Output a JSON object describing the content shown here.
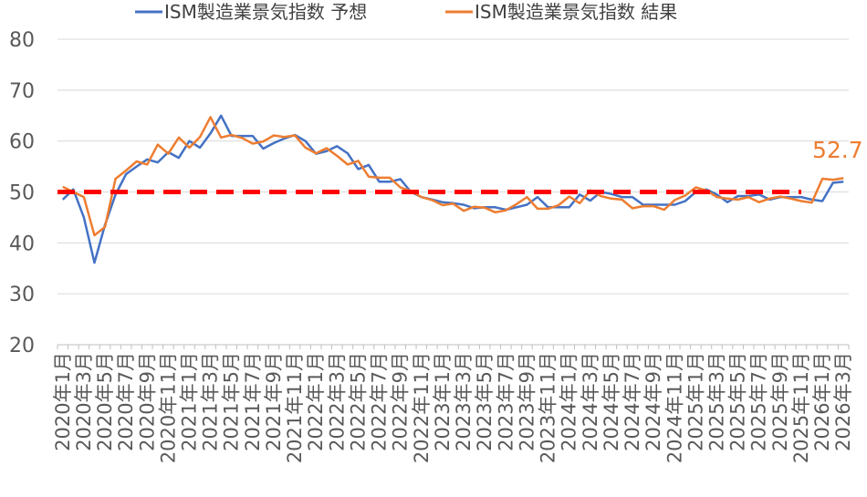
{
  "chart_data": {
    "type": "line",
    "title": "",
    "xlabel": "",
    "ylabel": "",
    "ylim": [
      20,
      80
    ],
    "yticks": [
      "20",
      "30",
      "40",
      "50",
      "60",
      "70",
      "80"
    ],
    "grid": true,
    "legend_position": "top",
    "categories": [
      "2020年1月",
      "2020年2月",
      "2020年3月",
      "2020年4月",
      "2020年5月",
      "2020年6月",
      "2020年7月",
      "2020年8月",
      "2020年9月",
      "2020年10月",
      "2020年11月",
      "2020年12月",
      "2021年1月",
      "2021年2月",
      "2021年3月",
      "2021年4月",
      "2021年5月",
      "2021年6月",
      "2021年7月",
      "2021年8月",
      "2021年9月",
      "2021年10月",
      "2021年11月",
      "2021年12月",
      "2022年1月",
      "2022年2月",
      "2022年3月",
      "2022年4月",
      "2022年5月",
      "2022年6月",
      "2022年7月",
      "2022年8月",
      "2022年9月",
      "2022年10月",
      "2022年11月",
      "2022年12月",
      "2023年1月",
      "2023年2月",
      "2023年3月",
      "2023年4月",
      "2023年5月",
      "2023年6月",
      "2023年7月",
      "2023年8月",
      "2023年9月",
      "2023年10月",
      "2023年11月",
      "2023年12月",
      "2024年1月",
      "2024年2月",
      "2024年3月",
      "2024年4月",
      "2024年5月",
      "2024年6月",
      "2024年7月",
      "2024年8月",
      "2024年9月",
      "2024年10月",
      "2024年11月",
      "2024年12月",
      "2025年1月",
      "2025年2月",
      "2025年3月",
      "2025年4月",
      "2025年5月",
      "2025年6月",
      "2025年7月",
      "2025年8月",
      "2025年9月",
      "2025年10月",
      "2025年11月",
      "2025年12月",
      "2026年1月",
      "2026年2月",
      "2026年3月"
    ],
    "xtick_labels": [
      "2020年1月",
      "2020年3月",
      "2020年5月",
      "2020年7月",
      "2020年9月",
      "2020年11月",
      "2021年1月",
      "2021年3月",
      "2021年5月",
      "2021年7月",
      "2021年9月",
      "2021年11月",
      "2022年1月",
      "2022年3月",
      "2022年5月",
      "2022年7月",
      "2022年9月",
      "2022年11月",
      "2023年1月",
      "2023年3月",
      "2023年5月",
      "2023年7月",
      "2023年9月",
      "2023年11月",
      "2024年1月",
      "2024年3月",
      "2024年5月",
      "2024年7月",
      "2024年9月",
      "2024年11月",
      "2025年1月",
      "2025年3月",
      "2025年5月",
      "2025年7月",
      "2025年9月",
      "2025年11月",
      "2026年1月",
      "2026年3月"
    ],
    "series": [
      {
        "name": "ISM製造業景気指数 予想",
        "color": "#4472C4",
        "values": [
          48.5,
          50.5,
          45.0,
          36.1,
          43.5,
          49.5,
          53.5,
          55.0,
          56.4,
          55.8,
          57.8,
          56.7,
          60.0,
          58.7,
          61.5,
          65.0,
          61.0,
          61.0,
          61.0,
          58.5,
          59.6,
          60.5,
          61.2,
          60.0,
          57.5,
          58.0,
          59.0,
          57.6,
          54.5,
          55.3,
          52.0,
          52.0,
          52.5,
          50.0,
          49.0,
          48.5,
          48.0,
          47.8,
          47.5,
          46.8,
          47.0,
          47.0,
          46.5,
          47.0,
          47.5,
          49.0,
          47.0,
          47.0,
          47.0,
          49.5,
          48.3,
          50.0,
          49.6,
          49.0,
          49.0,
          47.5,
          47.5,
          47.5,
          47.5,
          48.2,
          50.0,
          50.5,
          49.5,
          48.0,
          49.2,
          49.2,
          49.5,
          48.5,
          49.0,
          49.0,
          49.0,
          48.5,
          48.2,
          51.8,
          52.0
        ]
      },
      {
        "name": "ISM製造業景気指数 結果",
        "color": "#ED7D31",
        "values": [
          51.0,
          50.0,
          49.0,
          41.5,
          43.1,
          52.6,
          54.2,
          56.0,
          55.4,
          59.3,
          57.5,
          60.7,
          58.7,
          60.8,
          64.7,
          60.7,
          61.2,
          60.6,
          59.5,
          59.9,
          61.1,
          60.8,
          61.1,
          58.7,
          57.6,
          58.6,
          57.1,
          55.4,
          56.1,
          53.0,
          52.8,
          52.8,
          50.9,
          50.2,
          49.0,
          48.4,
          47.4,
          47.7,
          46.3,
          47.1,
          46.9,
          46.0,
          46.4,
          47.6,
          49.0,
          46.7,
          46.7,
          47.4,
          49.1,
          47.8,
          50.3,
          49.2,
          48.7,
          48.5,
          46.8,
          47.2,
          47.2,
          46.5,
          48.4,
          49.3,
          50.9,
          50.3,
          49.0,
          48.7,
          48.5,
          49.0,
          48.0,
          48.7,
          49.1,
          48.7,
          48.2,
          47.9,
          52.6,
          52.4,
          52.7
        ]
      }
    ],
    "reference_line": {
      "value": 50,
      "color": "#FF0000",
      "style": "dashed"
    },
    "annotation": {
      "text": "52.7",
      "color": "#ED7D31",
      "series": 1,
      "index": 74
    }
  }
}
